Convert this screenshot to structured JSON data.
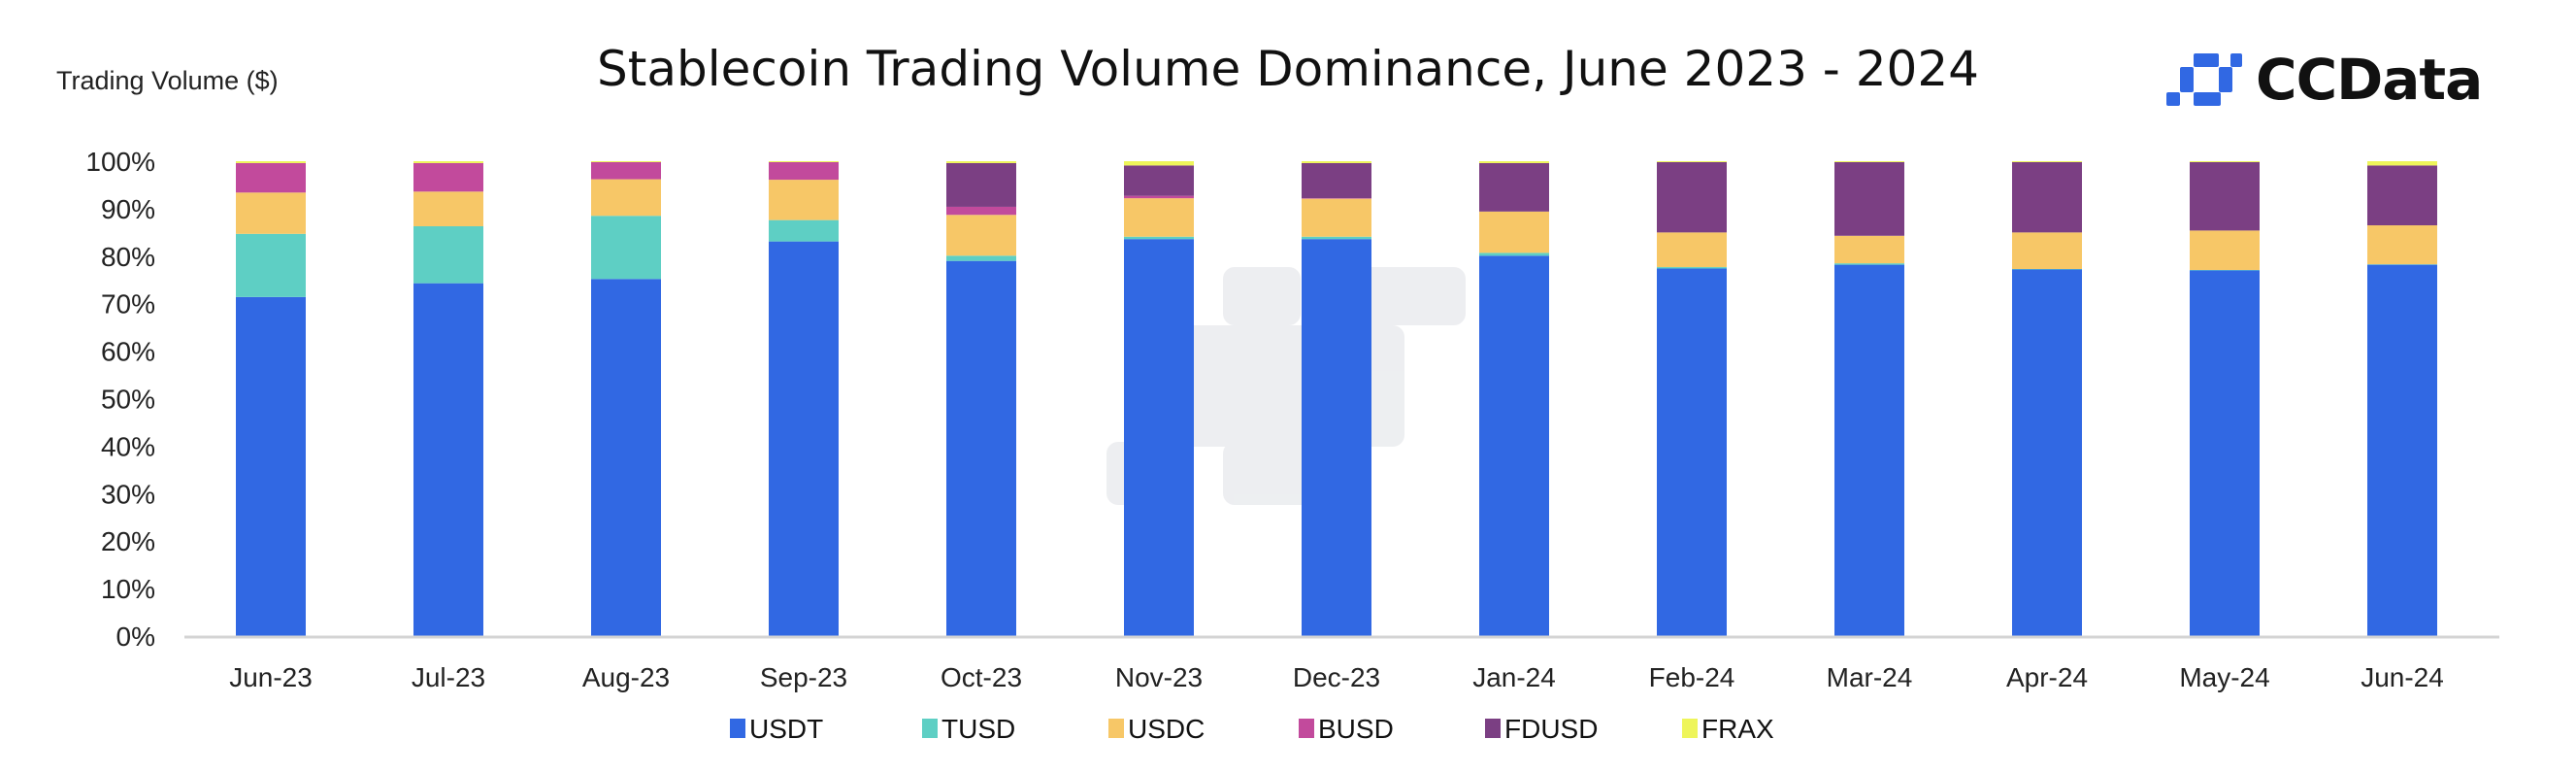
{
  "chart_data": {
    "type": "bar",
    "stacked": true,
    "title": "Stablecoin Trading Volume Dominance, June 2023 - 2024",
    "ylabel": "Trading Volume ($)",
    "xlabel": "",
    "ylim": [
      0,
      100
    ],
    "yticks": [
      "0%",
      "10%",
      "20%",
      "30%",
      "40%",
      "50%",
      "60%",
      "70%",
      "80%",
      "90%",
      "100%"
    ],
    "grid": false,
    "legend_position": "bottom",
    "categories": [
      "Jun-23",
      "Jul-23",
      "Aug-23",
      "Sep-23",
      "Oct-23",
      "Nov-23",
      "Dec-23",
      "Jan-24",
      "Feb-24",
      "Mar-24",
      "Apr-24",
      "May-24",
      "Jun-24"
    ],
    "series": [
      {
        "name": "USDT",
        "color": "#3168E3",
        "values": [
          71.4,
          74.3,
          75.2,
          83.1,
          79.0,
          83.6,
          83.6,
          80.1,
          77.4,
          78.2,
          77.2,
          77.0,
          78.2
        ]
      },
      {
        "name": "TUSD",
        "color": "#5ECFC4",
        "values": [
          13.3,
          12.0,
          13.3,
          4.5,
          1.1,
          0.5,
          0.5,
          0.6,
          0.3,
          0.3,
          0.1,
          0.1,
          0.1
        ]
      },
      {
        "name": "USDC",
        "color": "#F7C767",
        "values": [
          8.7,
          7.3,
          7.7,
          8.5,
          8.6,
          8.1,
          8.0,
          8.7,
          7.3,
          5.8,
          7.7,
          8.3,
          8.2
        ]
      },
      {
        "name": "BUSD",
        "color": "#C24A9C",
        "values": [
          6.2,
          6.0,
          3.6,
          3.7,
          1.7,
          0.5,
          0.1,
          0.0,
          0.0,
          0.0,
          0.0,
          0.0,
          0.0
        ]
      },
      {
        "name": "FDUSD",
        "color": "#7B3F83",
        "values": [
          0.0,
          0.0,
          0.0,
          0.0,
          9.2,
          6.4,
          7.4,
          10.2,
          14.8,
          15.5,
          14.8,
          14.4,
          12.6
        ]
      },
      {
        "name": "FRAX",
        "color": "#EEF55A",
        "values": [
          0.4,
          0.4,
          0.2,
          0.2,
          0.4,
          0.9,
          0.4,
          0.4,
          0.2,
          0.2,
          0.2,
          0.2,
          0.9
        ]
      }
    ]
  },
  "logo": {
    "text": "CCData",
    "color": "#3168E3"
  }
}
